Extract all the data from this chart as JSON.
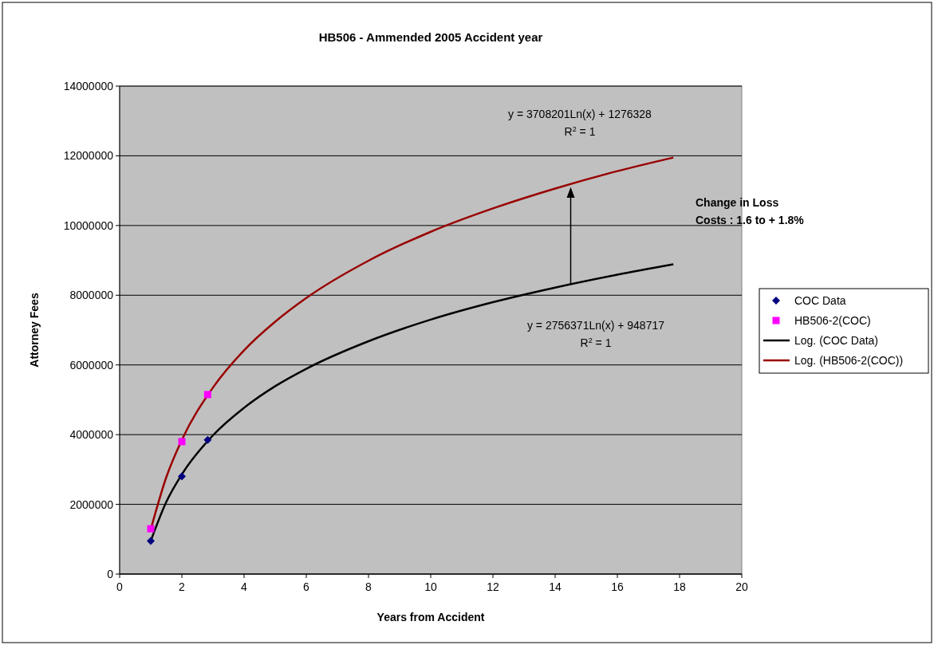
{
  "chart_data": {
    "type": "scatter",
    "title": "HB506 - Ammended 2005 Accident year",
    "xlabel": "Years from Accident",
    "ylabel": "Attorney Fees",
    "xlim": [
      0,
      20
    ],
    "xticks": [
      0,
      2,
      4,
      6,
      8,
      10,
      12,
      14,
      16,
      18,
      20
    ],
    "ylim": [
      0,
      14000000
    ],
    "yticks": [
      0,
      2000000,
      4000000,
      6000000,
      8000000,
      10000000,
      12000000,
      14000000
    ],
    "grid": "y",
    "legend": "right",
    "series": [
      {
        "name": "COC Data",
        "marker": "diamond",
        "color": "#000080",
        "x": [
          1,
          2,
          2.83
        ],
        "values": [
          950000,
          2800000,
          3850000
        ]
      },
      {
        "name": "HB506-2(COC)",
        "marker": "square",
        "color": "#ff00ff",
        "x": [
          1,
          2,
          2.83
        ],
        "values": [
          1300000,
          3800000,
          5150000
        ]
      },
      {
        "name": "Log. (COC Data)",
        "type": "line",
        "marker": "none",
        "color": "#000000",
        "x": [
          1,
          1.5,
          2,
          3,
          4,
          5,
          6,
          8,
          10,
          12,
          14,
          16,
          17.8
        ],
        "values": [
          950000,
          2070000,
          2860000,
          3980000,
          4770000,
          5390000,
          5890000,
          6680000,
          7300000,
          7800000,
          8220000,
          8590000,
          8890000
        ]
      },
      {
        "name": "Log. (HB506-2(COC))",
        "type": "line",
        "marker": "none",
        "color": "#990000",
        "x": [
          1,
          1.5,
          2,
          3,
          4,
          5,
          6,
          8,
          10,
          12,
          14,
          16,
          17.8
        ],
        "values": [
          1280000,
          2780000,
          3850000,
          5350000,
          6420000,
          7240000,
          7920000,
          8990000,
          9820000,
          10490000,
          11060000,
          11560000,
          11950000
        ]
      }
    ],
    "annotations": [
      "y = 3708201Ln(x) + 1276328\nR$^{2}$ = 1",
      "y = 2756371Ln(x) + 948717\nR$^{2}$ = 1",
      "Change in Loss\nCosts : 1.6  to + 1.8%"
    ]
  }
}
